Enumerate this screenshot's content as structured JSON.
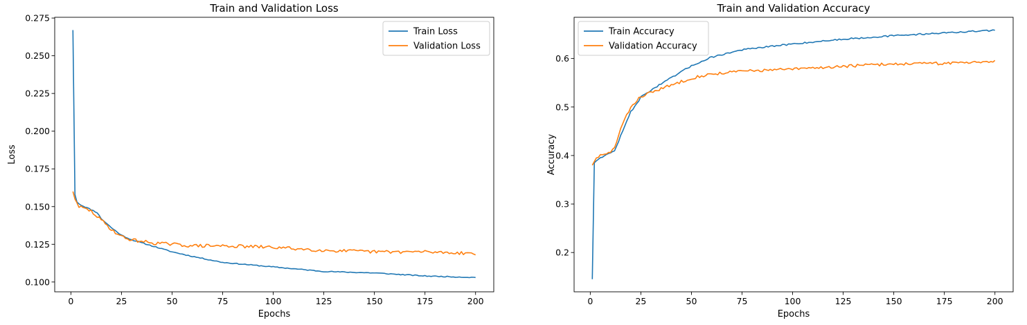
{
  "chart_data": [
    {
      "type": "line",
      "title": "Train and Validation Loss",
      "xlabel": "Epochs",
      "ylabel": "Loss",
      "xlim": [
        -8,
        209
      ],
      "ylim": [
        0.0935,
        0.2755
      ],
      "xticks": [
        0,
        25,
        50,
        75,
        100,
        125,
        150,
        175,
        200
      ],
      "yticks": [
        0.1,
        0.125,
        0.15,
        0.175,
        0.2,
        0.225,
        0.25,
        0.275
      ],
      "ytick_labels": [
        "0.100",
        "0.125",
        "0.150",
        "0.175",
        "0.200",
        "0.225",
        "0.250",
        "0.275"
      ],
      "legend_position": "upper right",
      "grid": false,
      "series": [
        {
          "name": "Train Loss",
          "color": "#1f77b4",
          "points": [
            [
              1,
              0.267
            ],
            [
              2,
              0.158
            ],
            [
              3,
              0.153
            ],
            [
              5,
              0.151
            ],
            [
              10,
              0.148
            ],
            [
              13,
              0.146
            ],
            [
              15,
              0.142
            ],
            [
              20,
              0.136
            ],
            [
              25,
              0.131
            ],
            [
              30,
              0.128
            ],
            [
              40,
              0.124
            ],
            [
              50,
              0.12
            ],
            [
              60,
              0.117
            ],
            [
              75,
              0.113
            ],
            [
              100,
              0.11
            ],
            [
              125,
              0.107
            ],
            [
              150,
              0.106
            ],
            [
              175,
              0.104
            ],
            [
              200,
              0.103
            ]
          ]
        },
        {
          "name": "Validation Loss",
          "color": "#ff7f0e",
          "points": [
            [
              1,
              0.16
            ],
            [
              2,
              0.155
            ],
            [
              4,
              0.15
            ],
            [
              6,
              0.149
            ],
            [
              10,
              0.147
            ],
            [
              15,
              0.141
            ],
            [
              20,
              0.135
            ],
            [
              25,
              0.13
            ],
            [
              30,
              0.128
            ],
            [
              40,
              0.126
            ],
            [
              50,
              0.125
            ],
            [
              60,
              0.124
            ],
            [
              75,
              0.124
            ],
            [
              100,
              0.123
            ],
            [
              125,
              0.121
            ],
            [
              150,
              0.12
            ],
            [
              175,
              0.12
            ],
            [
              200,
              0.119
            ]
          ]
        }
      ]
    },
    {
      "type": "line",
      "title": "Train and Validation Accuracy",
      "xlabel": "Epochs",
      "ylabel": "Accuracy",
      "xlim": [
        -8,
        209
      ],
      "ylim": [
        0.119,
        0.685
      ],
      "xticks": [
        0,
        25,
        50,
        75,
        100,
        125,
        150,
        175,
        200
      ],
      "yticks": [
        0.2,
        0.3,
        0.4,
        0.5,
        0.6
      ],
      "ytick_labels": [
        "0.2",
        "0.3",
        "0.4",
        "0.5",
        "0.6"
      ],
      "legend_position": "upper left",
      "grid": false,
      "series": [
        {
          "name": "Train Accuracy",
          "color": "#1f77b4",
          "points": [
            [
              1,
              0.145
            ],
            [
              2,
              0.385
            ],
            [
              4,
              0.393
            ],
            [
              6,
              0.398
            ],
            [
              10,
              0.405
            ],
            [
              12,
              0.41
            ],
            [
              15,
              0.44
            ],
            [
              20,
              0.49
            ],
            [
              25,
              0.52
            ],
            [
              30,
              0.535
            ],
            [
              40,
              0.56
            ],
            [
              50,
              0.585
            ],
            [
              60,
              0.603
            ],
            [
              75,
              0.618
            ],
            [
              100,
              0.63
            ],
            [
              125,
              0.64
            ],
            [
              150,
              0.647
            ],
            [
              175,
              0.653
            ],
            [
              200,
              0.658
            ]
          ]
        },
        {
          "name": "Validation Accuracy",
          "color": "#ff7f0e",
          "points": [
            [
              1,
              0.38
            ],
            [
              3,
              0.395
            ],
            [
              5,
              0.4
            ],
            [
              8,
              0.402
            ],
            [
              12,
              0.415
            ],
            [
              15,
              0.455
            ],
            [
              20,
              0.5
            ],
            [
              25,
              0.522
            ],
            [
              30,
              0.53
            ],
            [
              40,
              0.545
            ],
            [
              50,
              0.56
            ],
            [
              60,
              0.568
            ],
            [
              75,
              0.574
            ],
            [
              100,
              0.578
            ],
            [
              125,
              0.584
            ],
            [
              150,
              0.589
            ],
            [
              175,
              0.59
            ],
            [
              200,
              0.595
            ]
          ]
        }
      ]
    }
  ]
}
